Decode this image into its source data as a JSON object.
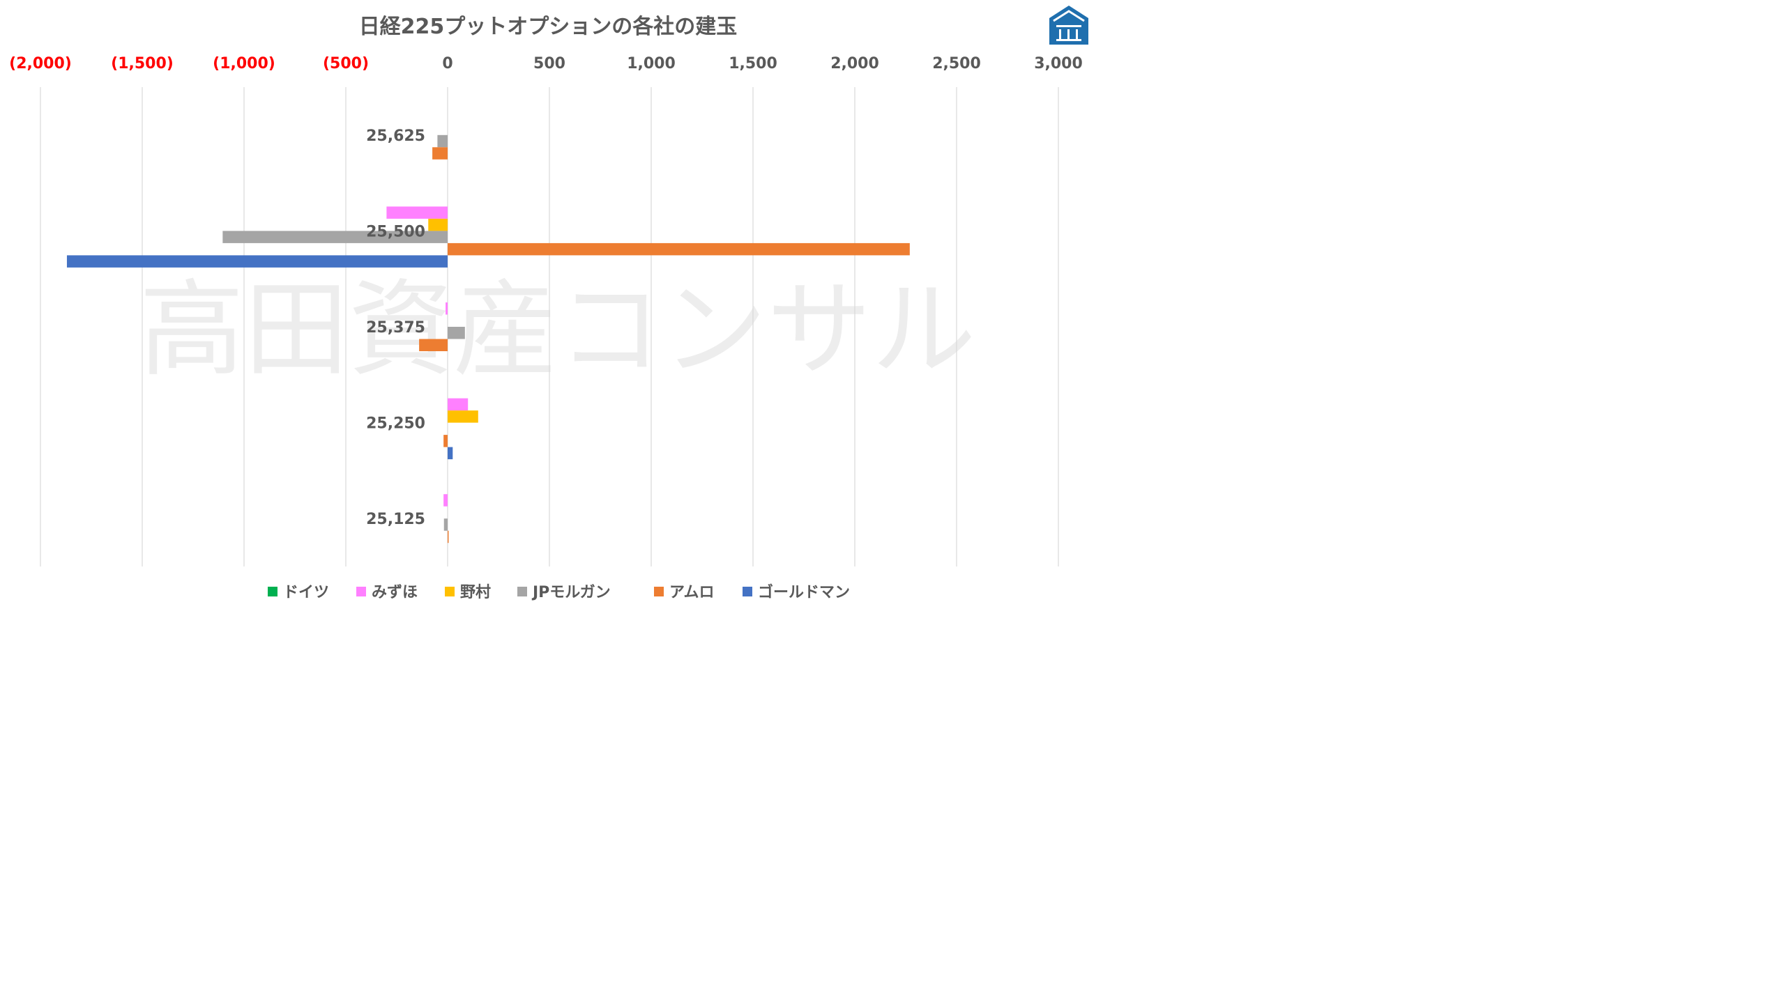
{
  "chart_data": {
    "type": "bar",
    "orientation": "horizontal",
    "title": "日経225プットオプションの各社の建玉",
    "watermark": "高田資産コンサル",
    "xlim": [
      -2000,
      3000
    ],
    "x_ticks": [
      -2000,
      -1500,
      -1000,
      -500,
      0,
      500,
      1000,
      1500,
      2000,
      2500,
      3000
    ],
    "x_tick_labels": [
      "(2,000)",
      "(1,500)",
      "(1,000)",
      "(500)",
      "0",
      "500",
      "1,000",
      "1,500",
      "2,000",
      "2,500",
      "3,000"
    ],
    "negative_tick_color": "#ff0000",
    "positive_tick_color": "#595959",
    "grid": true,
    "legend_position": "bottom",
    "categories": [
      "25,625",
      "25,500",
      "25,375",
      "25,250",
      "25,125"
    ],
    "series": [
      {
        "name": "ドイツ",
        "color": "#00b050",
        "values": [
          0,
          0,
          0,
          0,
          0
        ]
      },
      {
        "name": "みずほ",
        "color": "#ff80ff",
        "values": [
          0,
          -300,
          -10,
          100,
          -20
        ]
      },
      {
        "name": "野村",
        "color": "#ffc000",
        "values": [
          0,
          -95,
          0,
          150,
          0
        ]
      },
      {
        "name": "JPモルガン",
        "color": "#a5a5a5",
        "values": [
          -50,
          -1105,
          85,
          0,
          -18
        ]
      },
      {
        "name": "アムロ",
        "color": "#ed7d31",
        "values": [
          -75,
          2270,
          -140,
          -20,
          5
        ]
      },
      {
        "name": "ゴールドマン",
        "color": "#4472c4",
        "values": [
          0,
          -1870,
          0,
          25,
          0
        ]
      }
    ]
  },
  "logo": {
    "name": "building-logo",
    "color": "#1f6fae"
  }
}
